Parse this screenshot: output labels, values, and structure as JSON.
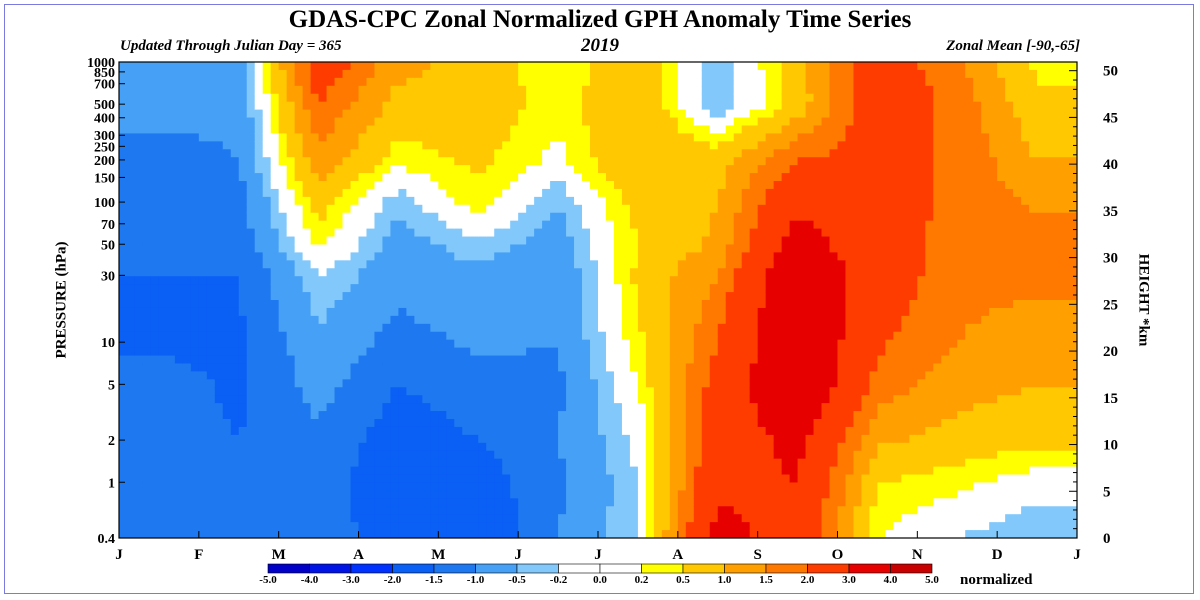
{
  "header": {
    "title": "GDAS-CPC Zonal Normalized GPH Anomaly Time Series",
    "left_note": "Updated Through Julian Day = 365",
    "center_note": "2019",
    "right_note": "Zonal Mean [-90,-65]"
  },
  "colorbar": {
    "unit": "normalized",
    "boundaries": [
      "-5.0",
      "-4.0",
      "-3.0",
      "-2.0",
      "-1.5",
      "-1.0",
      "-0.5",
      "-0.2",
      "0.0",
      "0.2",
      "0.5",
      "1.0",
      "1.5",
      "2.0",
      "3.0",
      "4.0",
      "5.0"
    ],
    "colors": [
      "#0000c8",
      "#0014e6",
      "#0032ff",
      "#0a5ff5",
      "#1e78f0",
      "#46a0f5",
      "#82c8fa",
      "#ffffff",
      "#ffffff",
      "#ffff00",
      "#ffc800",
      "#ffa000",
      "#ff7800",
      "#ff3c00",
      "#e60000",
      "#c80000"
    ]
  },
  "chart_data": {
    "type": "heatmap",
    "title": "GDAS-CPC Zonal Normalized GPH Anomaly Time Series",
    "ylabel": "PRESSURE (hPa)",
    "y2label": "HEIGHT *km",
    "x_ticks": [
      "J",
      "F",
      "M",
      "A",
      "M",
      "J",
      "J",
      "A",
      "S",
      "O",
      "N",
      "D",
      "J"
    ],
    "y_ticks": [
      "0.4",
      "1",
      "2",
      "5",
      "10",
      "30",
      "50",
      "70",
      "100",
      "150",
      "200",
      "250",
      "300",
      "400",
      "500",
      "700",
      "850",
      "1000"
    ],
    "y2_ticks": [
      "0",
      "5",
      "10",
      "15",
      "20",
      "25",
      "30",
      "35",
      "40",
      "45",
      "50"
    ],
    "pressure_levels_hPa": [
      1000,
      500,
      200,
      100,
      50,
      30,
      10,
      5,
      2,
      1,
      0.4
    ],
    "months": [
      "Jan",
      "Feb",
      "Mar",
      "Apr",
      "May",
      "Jun",
      "Jul",
      "Aug",
      "Sep",
      "Oct",
      "Nov",
      "Dec"
    ],
    "anomaly": [
      [
        -0.6,
        -0.8,
        -1.2,
        -1.0,
        -1.4,
        -1.5,
        -1.6,
        -1.3,
        -1.3,
        -1.5,
        -1.2
      ],
      [
        -0.7,
        -0.9,
        -1.0,
        -1.2,
        -1.3,
        -1.5,
        -1.6,
        -1.6,
        -1.5,
        -1.4,
        -1.3
      ],
      [
        2.5,
        2.0,
        1.3,
        0.7,
        0.3,
        -0.2,
        -0.6,
        -0.8,
        -1.1,
        -1.2,
        -1.2
      ],
      [
        1.2,
        0.8,
        0.3,
        -0.4,
        -0.7,
        -0.8,
        -1.2,
        -1.5,
        -1.8,
        -2.0,
        -1.8
      ],
      [
        0.8,
        0.8,
        0.6,
        0.4,
        -0.3,
        -0.6,
        -0.9,
        -1.2,
        -1.5,
        -1.8,
        -2.0
      ],
      [
        0.2,
        0.3,
        0.1,
        -0.5,
        -0.7,
        -0.9,
        -1.0,
        -1.1,
        -1.0,
        -1.1,
        -1.0
      ],
      [
        0.9,
        1.0,
        1.0,
        0.7,
        0.5,
        0.6,
        0.4,
        0.2,
        -0.1,
        -0.2,
        -0.2
      ],
      [
        -0.5,
        -0.5,
        0.8,
        1.0,
        1.1,
        1.5,
        2.0,
        2.3,
        2.6,
        2.8,
        3.3
      ],
      [
        0.8,
        0.7,
        2.0,
        2.8,
        3.4,
        3.9,
        4.1,
        4.0,
        3.2,
        3.0,
        2.6
      ],
      [
        2.4,
        2.6,
        2.2,
        2.3,
        2.4,
        2.5,
        2.1,
        1.8,
        1.1,
        0.5,
        0.2
      ],
      [
        1.6,
        1.8,
        1.9,
        1.9,
        1.7,
        1.6,
        1.5,
        1.2,
        0.8,
        0.3,
        -0.2
      ],
      [
        0.4,
        0.6,
        1.0,
        1.4,
        1.7,
        1.6,
        1.3,
        1.0,
        0.6,
        0.0,
        -0.5
      ]
    ]
  }
}
